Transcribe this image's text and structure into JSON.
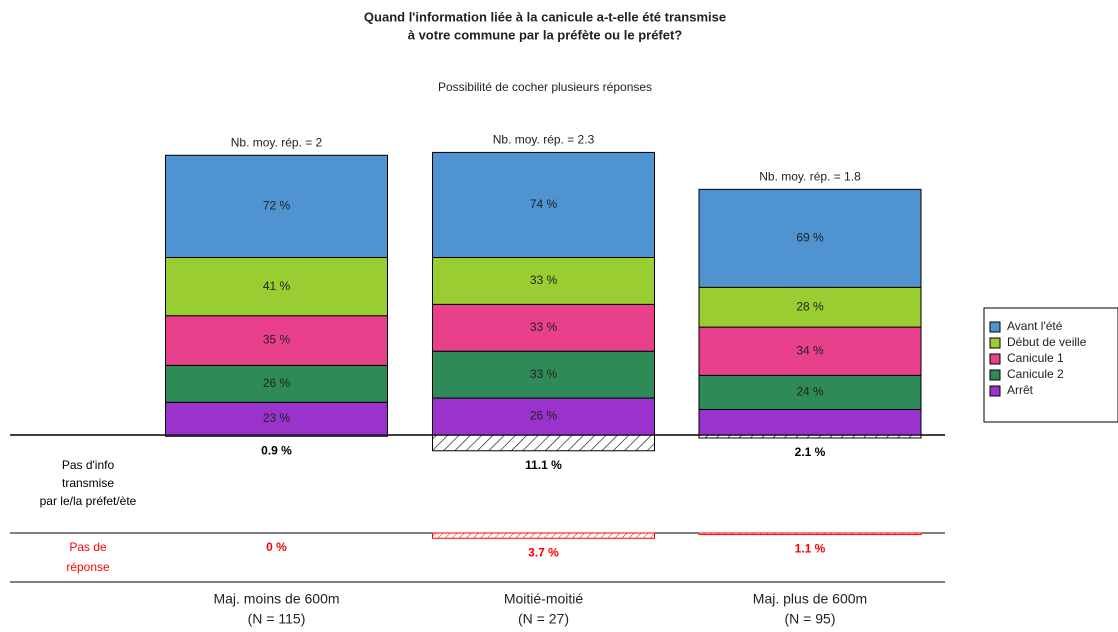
{
  "chart_data": {
    "type": "stacked_bar",
    "title": [
      "Quand l'information liée à la canicule a-t-elle été transmise",
      "à votre commune par la préfète ou le préfet?"
    ],
    "subtitle": "Possibilité de cocher plusieurs réponses",
    "categories": [
      "Maj. moins de 600m",
      "Moitié-moitié",
      "Maj. plus de 600m"
    ],
    "category_notes": [
      "(N = 115)",
      "(N = 27)",
      "(N = 95)"
    ],
    "total_labels": [
      "Nb. moy. rép. = 2",
      "Nb. moy. rép. = 2.3",
      "Nb. moy. rép. = 1.8"
    ],
    "legend": "right",
    "series": [
      {
        "name": "Avant l'été",
        "color": "#4f93d0",
        "values": [
          72,
          74,
          69
        ],
        "value_labels": [
          "72 %",
          "74 %",
          "69 %"
        ]
      },
      {
        "name": "Début de veille",
        "color": "#9acd32",
        "values": [
          41,
          33,
          28
        ],
        "value_labels": [
          "41 %",
          "33 %",
          "28 %"
        ]
      },
      {
        "name": "Canicule 1",
        "color": "#e8408a",
        "values": [
          35,
          33,
          34
        ],
        "value_labels": [
          "35 %",
          "33 %",
          "34 %"
        ]
      },
      {
        "name": "Canicule 2",
        "color": "#2e8b57",
        "values": [
          26,
          33,
          24
        ],
        "value_labels": [
          "26 %",
          "33 %",
          "24 %"
        ]
      },
      {
        "name": "Arrêt",
        "color": "#9933cc",
        "values": [
          23,
          26,
          18
        ],
        "value_labels": [
          "23 %",
          "26 %",
          null
        ]
      }
    ],
    "no_info": {
      "label": [
        "Pas d'info",
        "transmise",
        "par le/la préfet/ète"
      ],
      "color": "#000000",
      "values": [
        0.9,
        11.1,
        2.1
      ],
      "value_labels": [
        "0.9 %",
        "11.1 %",
        "2.1 %"
      ]
    },
    "no_answer": {
      "label": [
        "Pas de",
        "réponse"
      ],
      "color": "#ff0000",
      "values": [
        0,
        3.7,
        1.1
      ],
      "value_labels": [
        "0 %",
        "3.7 %",
        "1.1 %"
      ]
    }
  }
}
